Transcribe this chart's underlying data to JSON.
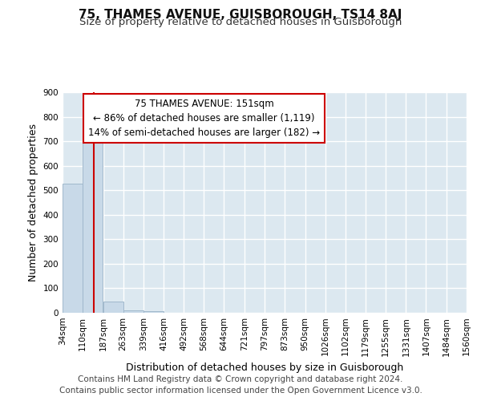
{
  "title": "75, THAMES AVENUE, GUISBOROUGH, TS14 8AJ",
  "subtitle": "Size of property relative to detached houses in Guisborough",
  "xlabel": "Distribution of detached houses by size in Guisborough",
  "ylabel": "Number of detached properties",
  "bin_labels": [
    "34sqm",
    "110sqm",
    "187sqm",
    "263sqm",
    "339sqm",
    "416sqm",
    "492sqm",
    "568sqm",
    "644sqm",
    "721sqm",
    "797sqm",
    "873sqm",
    "950sqm",
    "1026sqm",
    "1102sqm",
    "1179sqm",
    "1255sqm",
    "1331sqm",
    "1407sqm",
    "1484sqm",
    "1560sqm"
  ],
  "bin_edges": [
    34,
    110,
    187,
    263,
    339,
    416,
    492,
    568,
    644,
    721,
    797,
    873,
    950,
    1026,
    1102,
    1179,
    1255,
    1331,
    1407,
    1484,
    1560
  ],
  "bar_heights": [
    528,
    725,
    47,
    10,
    8,
    0,
    0,
    0,
    0,
    0,
    0,
    0,
    0,
    0,
    0,
    0,
    0,
    0,
    0,
    0
  ],
  "bar_color": "#c8d9e8",
  "bar_edge_color": "#a0b8cc",
  "property_size": 151,
  "red_line_color": "#cc0000",
  "annotation_line1": "75 THAMES AVENUE: 151sqm",
  "annotation_line2": "← 86% of detached houses are smaller (1,119)",
  "annotation_line3": "14% of semi-detached houses are larger (182) →",
  "annotation_box_color": "#ffffff",
  "annotation_box_edge": "#cc0000",
  "ylim": [
    0,
    900
  ],
  "yticks": [
    0,
    100,
    200,
    300,
    400,
    500,
    600,
    700,
    800,
    900
  ],
  "axes_background": "#dce8f0",
  "grid_color": "#ffffff",
  "footer_text": "Contains HM Land Registry data © Crown copyright and database right 2024.\nContains public sector information licensed under the Open Government Licence v3.0.",
  "title_fontsize": 11,
  "subtitle_fontsize": 9.5,
  "xlabel_fontsize": 9,
  "ylabel_fontsize": 9,
  "tick_fontsize": 7.5,
  "annotation_fontsize": 8.5,
  "footer_fontsize": 7.5
}
